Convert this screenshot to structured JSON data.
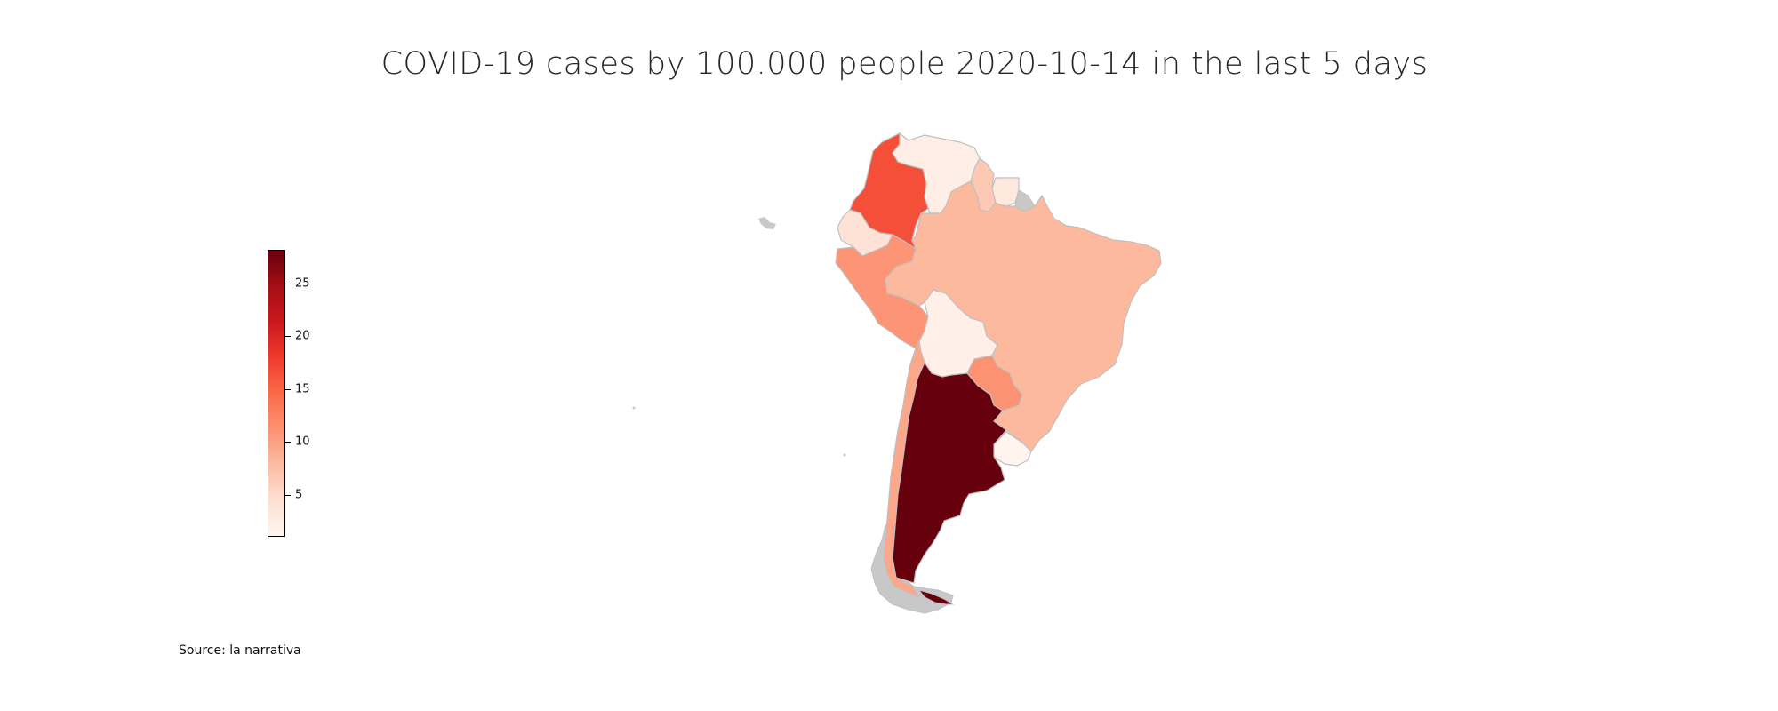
{
  "title": "COVID-19 cases by 100.000 people 2020-10-14 in the last 5 days",
  "source_note": "Source: la narrativa",
  "colorbar": {
    "colormap": "Reds",
    "min": 1,
    "max": 28.2,
    "ticks": [
      "5",
      "10",
      "15",
      "20",
      "25"
    ],
    "tick_values": [
      5,
      10,
      15,
      20,
      25
    ],
    "colors": [
      "#fff5f0",
      "#fee0d2",
      "#fcbba1",
      "#fc9272",
      "#fb6a4a",
      "#ef3b2c",
      "#cb181d",
      "#a50f15",
      "#67000d"
    ]
  },
  "colors": {
    "border": "#c0c0c0",
    "no_data": "#c8c8c8"
  },
  "regions": [
    {
      "id": "colombia",
      "value": 16.5
    },
    {
      "id": "venezuela",
      "value": 2.2
    },
    {
      "id": "guyana",
      "value": 6.5
    },
    {
      "id": "suriname",
      "value": 3.0
    },
    {
      "id": "ecuador",
      "value": 4.0
    },
    {
      "id": "peru",
      "value": 11.0
    },
    {
      "id": "brazil",
      "value": 8.0
    },
    {
      "id": "bolivia",
      "value": 2.0
    },
    {
      "id": "paraguay",
      "value": 11.2
    },
    {
      "id": "chile",
      "value": 9.5
    },
    {
      "id": "argentina",
      "value": 28.2
    },
    {
      "id": "uruguay",
      "value": 1.2
    },
    {
      "id": "french-guiana",
      "value": null
    },
    {
      "id": "falklands",
      "value": null
    }
  ]
}
